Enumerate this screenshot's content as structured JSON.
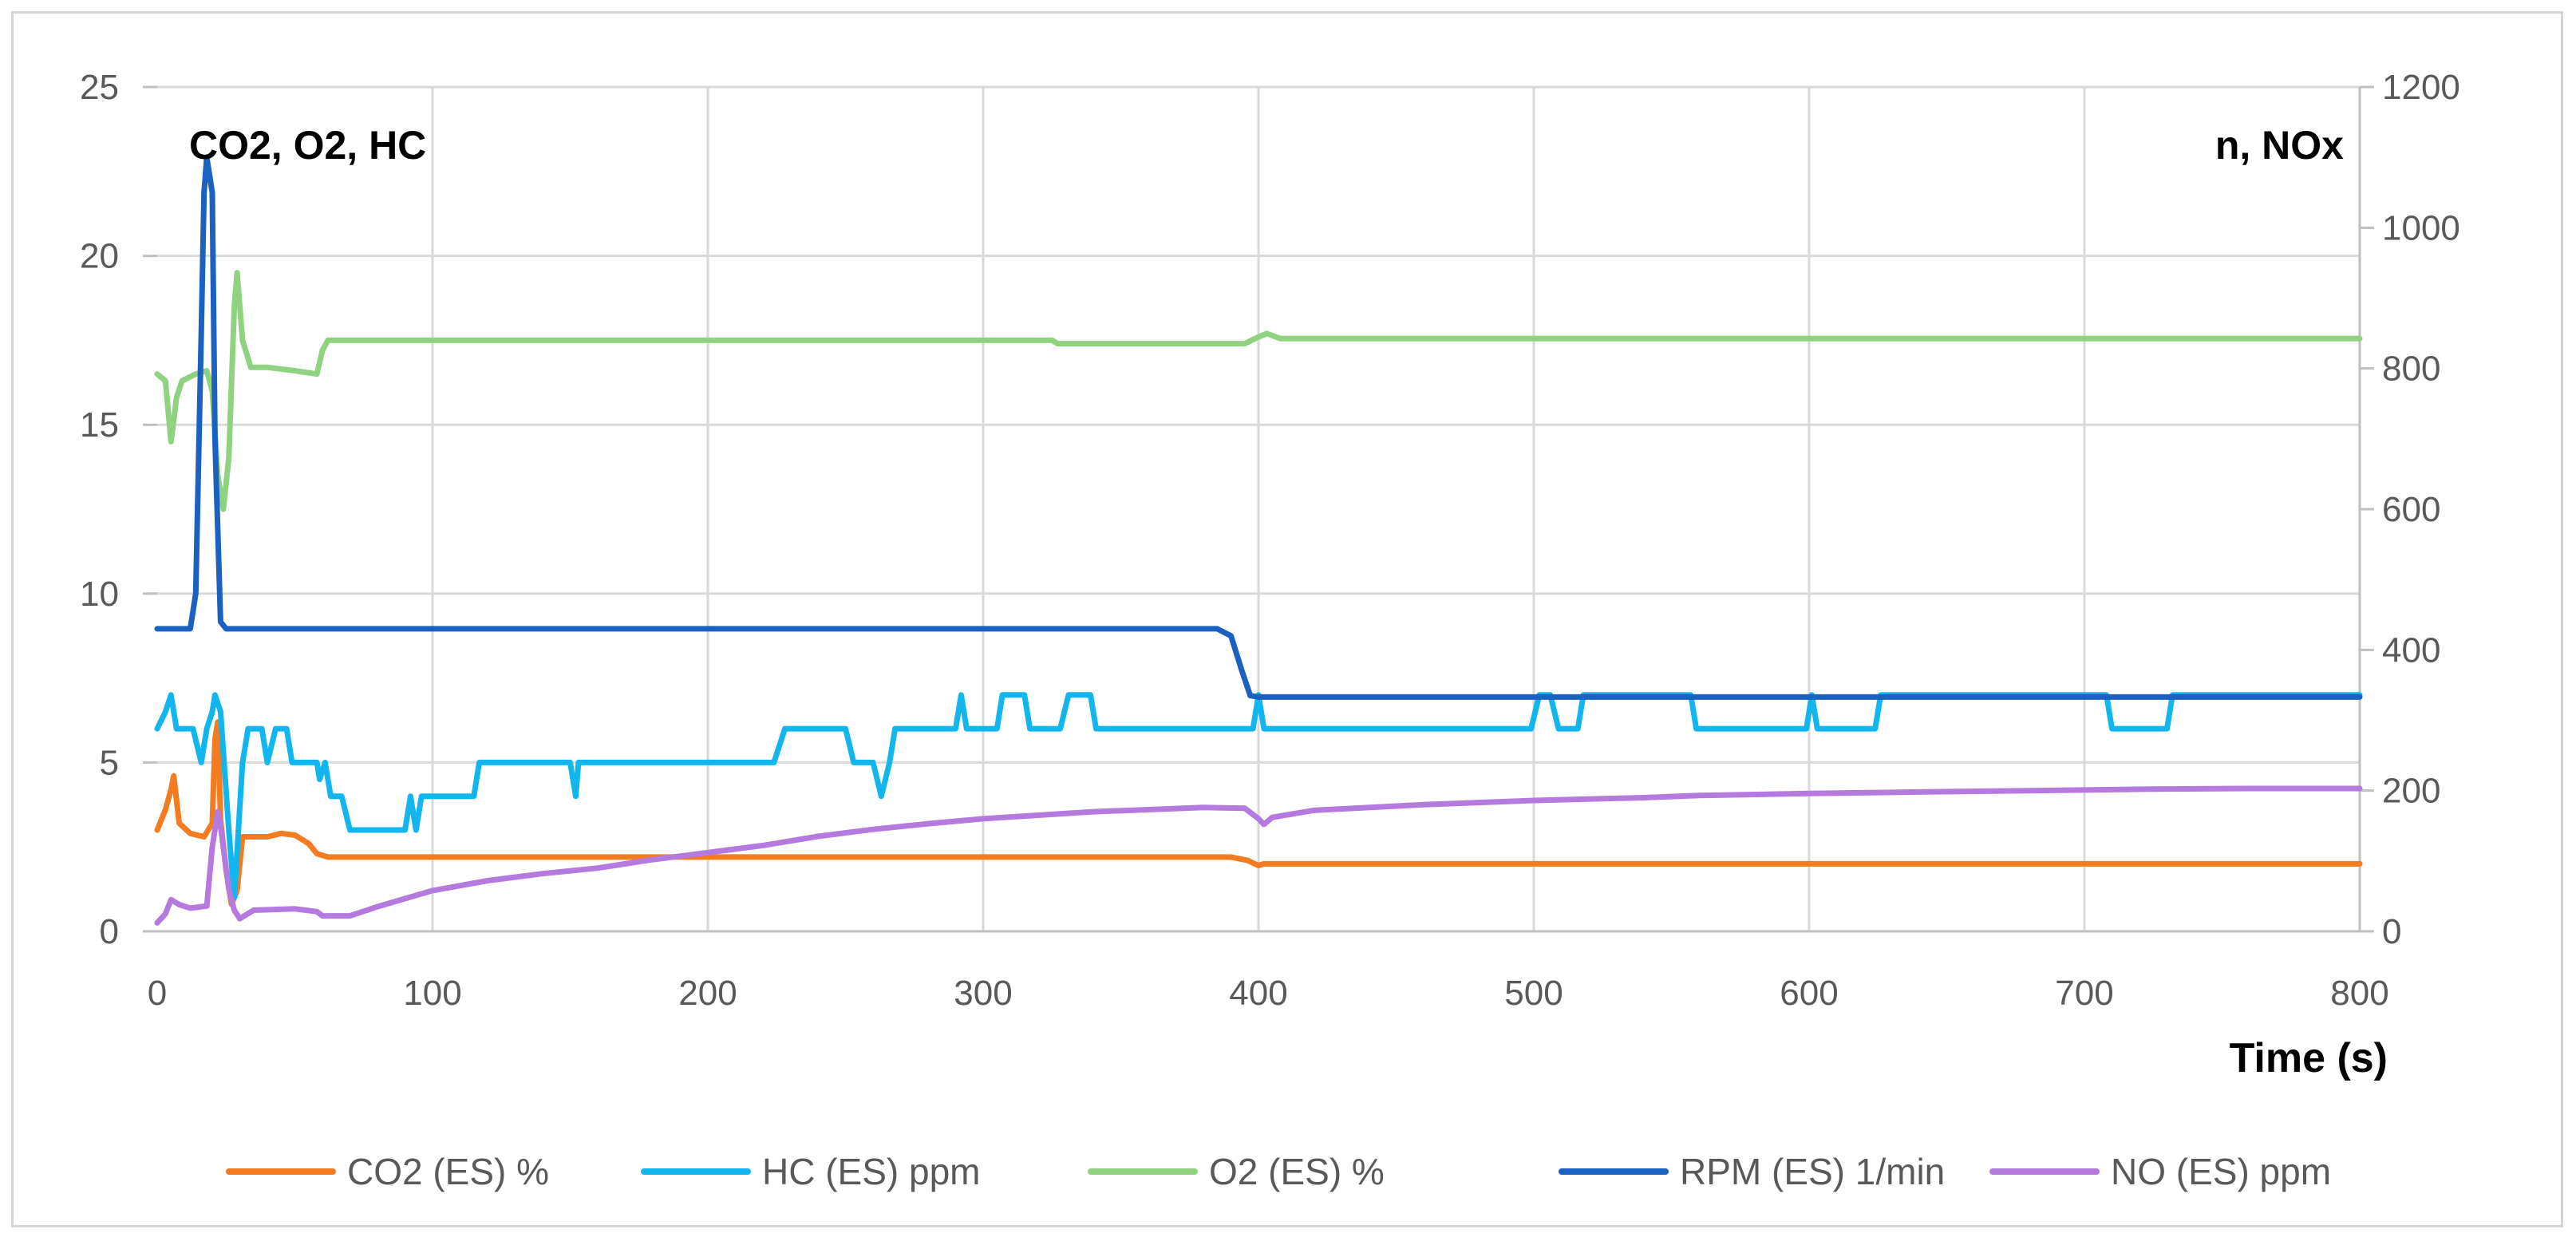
{
  "chart_data": {
    "type": "line",
    "left_axis_title": "CO2, O2, HC",
    "right_axis_title": "n, NOx",
    "xlabel": "Time (s)",
    "xlim": [
      0,
      800
    ],
    "x_ticks": [
      "0",
      "100",
      "200",
      "300",
      "400",
      "500",
      "600",
      "700",
      "800"
    ],
    "ylim_left": [
      0,
      25
    ],
    "y_left_ticks": [
      "0",
      "5",
      "10",
      "15",
      "20",
      "25"
    ],
    "ylim_right": [
      0,
      1200
    ],
    "y_right_ticks": [
      "0",
      "200",
      "400",
      "600",
      "800",
      "1000",
      "1200"
    ],
    "grid": true,
    "legend_position": "bottom",
    "series": [
      {
        "name": "CO2 (ES) %",
        "axis": "left",
        "color": "#f47c20",
        "points": [
          [
            0,
            3.0
          ],
          [
            3,
            3.6
          ],
          [
            5,
            4.2
          ],
          [
            6,
            4.6
          ],
          [
            8,
            3.2
          ],
          [
            12,
            2.9
          ],
          [
            17,
            2.8
          ],
          [
            20,
            3.2
          ],
          [
            21,
            5.7
          ],
          [
            22,
            6.2
          ],
          [
            23,
            3.3
          ],
          [
            25,
            1.8
          ],
          [
            27,
            0.8
          ],
          [
            29,
            1.2
          ],
          [
            31,
            2.8
          ],
          [
            40,
            2.8
          ],
          [
            45,
            2.9
          ],
          [
            50,
            2.85
          ],
          [
            55,
            2.6
          ],
          [
            58,
            2.3
          ],
          [
            62,
            2.2
          ],
          [
            80,
            2.2
          ],
          [
            200,
            2.2
          ],
          [
            390,
            2.2
          ],
          [
            396,
            2.1
          ],
          [
            400,
            1.95
          ],
          [
            402,
            2.0
          ],
          [
            800,
            2.0
          ]
        ]
      },
      {
        "name": "HC (ES) ppm",
        "axis": "left",
        "color": "#12b6ef",
        "points": [
          [
            0,
            6
          ],
          [
            3,
            6.5
          ],
          [
            5,
            7
          ],
          [
            7,
            6
          ],
          [
            13,
            6
          ],
          [
            16,
            5
          ],
          [
            18,
            6
          ],
          [
            20,
            6.5
          ],
          [
            21,
            7
          ],
          [
            23,
            6.5
          ],
          [
            26,
            3
          ],
          [
            28,
            1
          ],
          [
            31,
            5
          ],
          [
            33,
            6
          ],
          [
            38,
            6
          ],
          [
            40,
            5
          ],
          [
            43,
            6
          ],
          [
            47,
            6
          ],
          [
            49,
            5
          ],
          [
            58,
            5
          ],
          [
            59,
            4.5
          ],
          [
            61,
            5
          ],
          [
            63,
            4
          ],
          [
            67,
            4
          ],
          [
            70,
            3
          ],
          [
            90,
            3
          ],
          [
            92,
            4
          ],
          [
            94,
            3
          ],
          [
            96,
            4
          ],
          [
            115,
            4
          ],
          [
            117,
            5
          ],
          [
            150,
            5
          ],
          [
            152,
            4
          ],
          [
            153,
            5
          ],
          [
            224,
            5
          ],
          [
            228,
            6
          ],
          [
            250,
            6
          ],
          [
            253,
            5
          ],
          [
            260,
            5
          ],
          [
            263,
            4
          ],
          [
            266,
            5
          ],
          [
            268,
            6
          ],
          [
            290,
            6
          ],
          [
            292,
            7
          ],
          [
            294,
            6
          ],
          [
            305,
            6
          ],
          [
            307,
            7
          ],
          [
            315,
            7
          ],
          [
            317,
            6
          ],
          [
            328,
            6
          ],
          [
            331,
            7
          ],
          [
            339,
            7
          ],
          [
            341,
            6
          ],
          [
            398,
            6
          ],
          [
            400,
            7
          ],
          [
            402,
            6
          ],
          [
            499,
            6
          ],
          [
            502,
            7
          ],
          [
            506,
            7
          ],
          [
            509,
            6
          ],
          [
            516,
            6
          ],
          [
            518,
            7
          ],
          [
            557,
            7
          ],
          [
            559,
            6
          ],
          [
            599,
            6
          ],
          [
            601,
            7
          ],
          [
            603,
            6
          ],
          [
            624,
            6
          ],
          [
            626,
            7
          ],
          [
            708,
            7
          ],
          [
            710,
            6
          ],
          [
            730,
            6
          ],
          [
            732,
            7
          ],
          [
            800,
            7
          ]
        ]
      },
      {
        "name": "O2 (ES) %",
        "axis": "left",
        "color": "#8fd27f",
        "points": [
          [
            0,
            16.5
          ],
          [
            3,
            16.3
          ],
          [
            5,
            14.5
          ],
          [
            7,
            15.8
          ],
          [
            9,
            16.3
          ],
          [
            14,
            16.5
          ],
          [
            18,
            16.6
          ],
          [
            20,
            16.0
          ],
          [
            22,
            13.5
          ],
          [
            24,
            12.5
          ],
          [
            26,
            14.0
          ],
          [
            28,
            18.5
          ],
          [
            29,
            19.5
          ],
          [
            31,
            17.5
          ],
          [
            34,
            16.7
          ],
          [
            40,
            16.7
          ],
          [
            50,
            16.6
          ],
          [
            58,
            16.5
          ],
          [
            60,
            17.2
          ],
          [
            62,
            17.5
          ],
          [
            100,
            17.5
          ],
          [
            325,
            17.5
          ],
          [
            327,
            17.4
          ],
          [
            395,
            17.4
          ],
          [
            400,
            17.6
          ],
          [
            403,
            17.7
          ],
          [
            408,
            17.55
          ],
          [
            800,
            17.55
          ]
        ]
      },
      {
        "name": "RPM (ES) 1/min",
        "axis": "right",
        "color": "#1a61c2",
        "points": [
          [
            0,
            430
          ],
          [
            12,
            430
          ],
          [
            14,
            480
          ],
          [
            16,
            850
          ],
          [
            17,
            1050
          ],
          [
            18,
            1100
          ],
          [
            20,
            1050
          ],
          [
            21,
            700
          ],
          [
            23,
            440
          ],
          [
            25,
            430
          ],
          [
            100,
            430
          ],
          [
            385,
            430
          ],
          [
            390,
            420
          ],
          [
            394,
            370
          ],
          [
            397,
            335
          ],
          [
            400,
            333
          ],
          [
            800,
            333
          ]
        ]
      },
      {
        "name": "NO (ES) ppm",
        "axis": "right",
        "color": "#b57ade",
        "points": [
          [
            0,
            12
          ],
          [
            3,
            25
          ],
          [
            5,
            45
          ],
          [
            8,
            38
          ],
          [
            12,
            33
          ],
          [
            18,
            36
          ],
          [
            20,
            120
          ],
          [
            22,
            170
          ],
          [
            23,
            150
          ],
          [
            26,
            60
          ],
          [
            28,
            30
          ],
          [
            30,
            18
          ],
          [
            35,
            30
          ],
          [
            50,
            32
          ],
          [
            58,
            28
          ],
          [
            60,
            22
          ],
          [
            70,
            22
          ],
          [
            80,
            35
          ],
          [
            100,
            58
          ],
          [
            120,
            72
          ],
          [
            140,
            82
          ],
          [
            160,
            90
          ],
          [
            180,
            102
          ],
          [
            200,
            112
          ],
          [
            220,
            122
          ],
          [
            240,
            135
          ],
          [
            260,
            145
          ],
          [
            280,
            153
          ],
          [
            300,
            160
          ],
          [
            320,
            165
          ],
          [
            340,
            170
          ],
          [
            360,
            173
          ],
          [
            380,
            176
          ],
          [
            395,
            175
          ],
          [
            400,
            160
          ],
          [
            402,
            152
          ],
          [
            405,
            162
          ],
          [
            420,
            172
          ],
          [
            460,
            180
          ],
          [
            500,
            186
          ],
          [
            540,
            190
          ],
          [
            560,
            193
          ],
          [
            600,
            196
          ],
          [
            640,
            198
          ],
          [
            680,
            200
          ],
          [
            720,
            202
          ],
          [
            760,
            203
          ],
          [
            800,
            203
          ]
        ]
      }
    ]
  }
}
